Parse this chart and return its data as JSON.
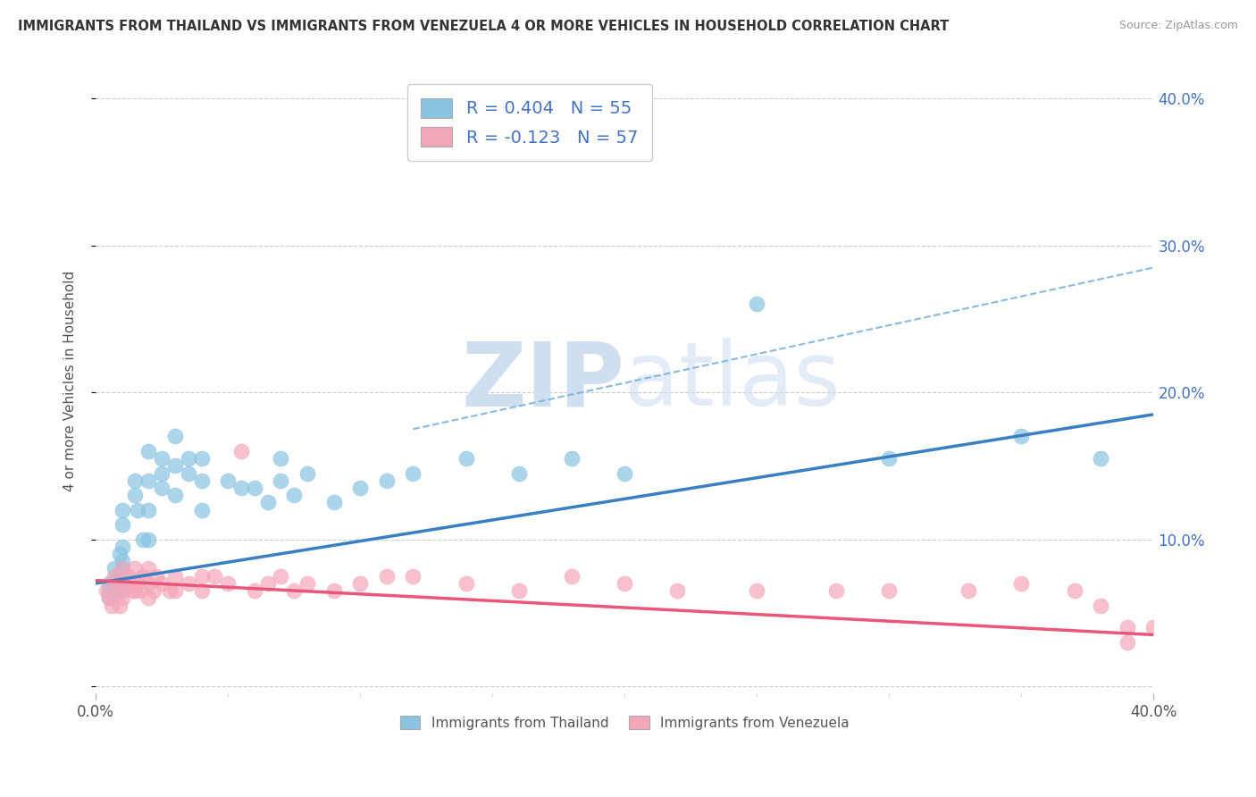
{
  "title": "IMMIGRANTS FROM THAILAND VS IMMIGRANTS FROM VENEZUELA 4 OR MORE VEHICLES IN HOUSEHOLD CORRELATION CHART",
  "source": "Source: ZipAtlas.com",
  "ylabel": "4 or more Vehicles in Household",
  "xlim": [
    0.0,
    0.4
  ],
  "ylim": [
    -0.005,
    0.42
  ],
  "thailand_R": 0.404,
  "thailand_N": 55,
  "venezuela_R": -0.123,
  "venezuela_N": 57,
  "thailand_color": "#89c4e1",
  "venezuela_color": "#f4a7b9",
  "thailand_line_color": "#3a7fc1",
  "venezuela_line_color": "#e8567a",
  "dashed_line_color": "#7ab3d9",
  "background_color": "#ffffff",
  "grid_color": "#cccccc",
  "right_axis_color": "#4472c4",
  "watermark_color": "#d0dff0",
  "legend_label_thailand": "Immigrants from Thailand",
  "legend_label_venezuela": "Immigrants from Venezuela",
  "thailand_line_x0": 0.0,
  "thailand_line_y0": 0.07,
  "thailand_line_x1": 0.4,
  "thailand_line_y1": 0.185,
  "venezuela_line_x0": 0.0,
  "venezuela_line_y0": 0.072,
  "venezuela_line_x1": 0.4,
  "venezuela_line_y1": 0.035,
  "dashed_line_x0": 0.12,
  "dashed_line_y0": 0.175,
  "dashed_line_x1": 0.4,
  "dashed_line_y1": 0.285,
  "th_x": [
    0.005,
    0.005,
    0.005,
    0.007,
    0.008,
    0.008,
    0.009,
    0.009,
    0.01,
    0.01,
    0.01,
    0.01,
    0.01,
    0.01,
    0.01,
    0.01,
    0.015,
    0.015,
    0.016,
    0.018,
    0.02,
    0.02,
    0.02,
    0.02,
    0.025,
    0.025,
    0.025,
    0.03,
    0.03,
    0.03,
    0.035,
    0.035,
    0.04,
    0.04,
    0.04,
    0.05,
    0.055,
    0.06,
    0.065,
    0.07,
    0.07,
    0.075,
    0.08,
    0.09,
    0.1,
    0.11,
    0.12,
    0.14,
    0.16,
    0.18,
    0.2,
    0.25,
    0.3,
    0.35,
    0.38
  ],
  "th_y": [
    0.07,
    0.065,
    0.06,
    0.08,
    0.075,
    0.065,
    0.07,
    0.09,
    0.08,
    0.075,
    0.07,
    0.065,
    0.095,
    0.085,
    0.12,
    0.11,
    0.14,
    0.13,
    0.12,
    0.1,
    0.16,
    0.14,
    0.12,
    0.1,
    0.155,
    0.145,
    0.135,
    0.17,
    0.15,
    0.13,
    0.155,
    0.145,
    0.155,
    0.14,
    0.12,
    0.14,
    0.135,
    0.135,
    0.125,
    0.155,
    0.14,
    0.13,
    0.145,
    0.125,
    0.135,
    0.14,
    0.145,
    0.155,
    0.145,
    0.155,
    0.145,
    0.26,
    0.155,
    0.17,
    0.155
  ],
  "ven_x": [
    0.004,
    0.005,
    0.006,
    0.007,
    0.008,
    0.009,
    0.009,
    0.01,
    0.01,
    0.01,
    0.012,
    0.013,
    0.014,
    0.015,
    0.015,
    0.016,
    0.017,
    0.018,
    0.02,
    0.02,
    0.02,
    0.022,
    0.023,
    0.025,
    0.028,
    0.03,
    0.03,
    0.035,
    0.04,
    0.04,
    0.045,
    0.05,
    0.055,
    0.06,
    0.065,
    0.07,
    0.075,
    0.08,
    0.09,
    0.1,
    0.11,
    0.12,
    0.14,
    0.16,
    0.18,
    0.2,
    0.22,
    0.25,
    0.28,
    0.3,
    0.33,
    0.35,
    0.37,
    0.38,
    0.39,
    0.39,
    0.4
  ],
  "ven_y": [
    0.065,
    0.06,
    0.055,
    0.075,
    0.07,
    0.065,
    0.055,
    0.08,
    0.07,
    0.06,
    0.075,
    0.07,
    0.065,
    0.08,
    0.065,
    0.07,
    0.065,
    0.075,
    0.08,
    0.07,
    0.06,
    0.065,
    0.075,
    0.07,
    0.065,
    0.075,
    0.065,
    0.07,
    0.075,
    0.065,
    0.075,
    0.07,
    0.16,
    0.065,
    0.07,
    0.075,
    0.065,
    0.07,
    0.065,
    0.07,
    0.075,
    0.075,
    0.07,
    0.065,
    0.075,
    0.07,
    0.065,
    0.065,
    0.065,
    0.065,
    0.065,
    0.07,
    0.065,
    0.055,
    0.04,
    0.03,
    0.04
  ]
}
